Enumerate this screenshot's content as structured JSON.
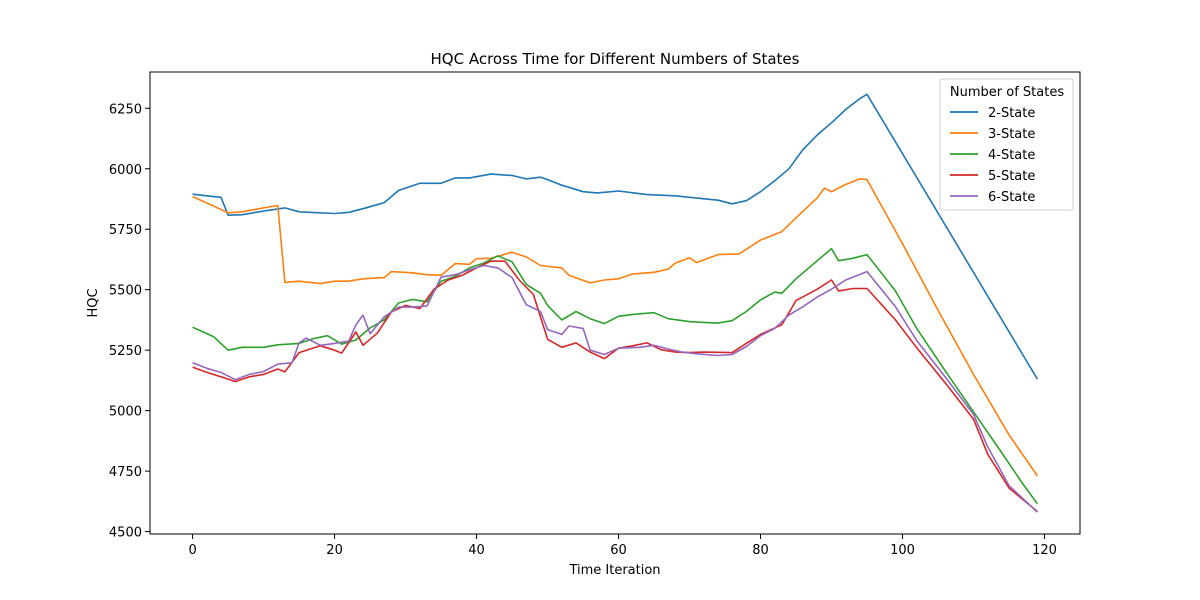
{
  "chart_data": {
    "type": "line",
    "title": "HQC Across Time for Different Numbers of States",
    "xlabel": "Time Iteration",
    "ylabel": "HQC",
    "xlim": [
      -6,
      125
    ],
    "ylim": [
      4490,
      6400
    ],
    "xticks": [
      0,
      20,
      40,
      60,
      80,
      100,
      120
    ],
    "yticks": [
      4500,
      4750,
      5000,
      5250,
      5500,
      5750,
      6000,
      6250
    ],
    "grid": false,
    "legend": {
      "title": "Number of States",
      "placement": "top-right"
    },
    "series": [
      {
        "name": "2-State",
        "color": "#1f77b4",
        "points": [
          [
            0,
            5895
          ],
          [
            2,
            5888
          ],
          [
            4,
            5882
          ],
          [
            5,
            5808
          ],
          [
            7,
            5810
          ],
          [
            10,
            5825
          ],
          [
            13,
            5838
          ],
          [
            15,
            5822
          ],
          [
            20,
            5815
          ],
          [
            22,
            5820
          ],
          [
            24,
            5835
          ],
          [
            27,
            5860
          ],
          [
            29,
            5910
          ],
          [
            32,
            5940
          ],
          [
            35,
            5940
          ],
          [
            37,
            5962
          ],
          [
            39,
            5962
          ],
          [
            42,
            5978
          ],
          [
            45,
            5972
          ],
          [
            47,
            5958
          ],
          [
            49,
            5965
          ],
          [
            50,
            5955
          ],
          [
            52,
            5932
          ],
          [
            55,
            5905
          ],
          [
            57,
            5900
          ],
          [
            60,
            5908
          ],
          [
            64,
            5893
          ],
          [
            68,
            5888
          ],
          [
            70,
            5882
          ],
          [
            74,
            5870
          ],
          [
            76,
            5855
          ],
          [
            78,
            5868
          ],
          [
            80,
            5905
          ],
          [
            82,
            5950
          ],
          [
            84,
            6000
          ],
          [
            86,
            6080
          ],
          [
            88,
            6140
          ],
          [
            90,
            6190
          ],
          [
            92,
            6245
          ],
          [
            94,
            6290
          ],
          [
            95,
            6308
          ],
          [
            119,
            5130
          ]
        ]
      },
      {
        "name": "3-State",
        "color": "#ff7f0e",
        "points": [
          [
            0,
            5885
          ],
          [
            3,
            5845
          ],
          [
            5,
            5818
          ],
          [
            7,
            5822
          ],
          [
            10,
            5838
          ],
          [
            12,
            5848
          ],
          [
            13,
            5530
          ],
          [
            15,
            5535
          ],
          [
            18,
            5525
          ],
          [
            20,
            5535
          ],
          [
            22,
            5535
          ],
          [
            24,
            5545
          ],
          [
            27,
            5550
          ],
          [
            28,
            5575
          ],
          [
            31,
            5570
          ],
          [
            33,
            5562
          ],
          [
            35,
            5560
          ],
          [
            37,
            5608
          ],
          [
            39,
            5605
          ],
          [
            40,
            5628
          ],
          [
            42,
            5630
          ],
          [
            45,
            5655
          ],
          [
            47,
            5635
          ],
          [
            49,
            5600
          ],
          [
            52,
            5590
          ],
          [
            53,
            5560
          ],
          [
            56,
            5528
          ],
          [
            58,
            5540
          ],
          [
            60,
            5545
          ],
          [
            62,
            5565
          ],
          [
            65,
            5572
          ],
          [
            67,
            5585
          ],
          [
            68,
            5610
          ],
          [
            70,
            5632
          ],
          [
            71,
            5612
          ],
          [
            74,
            5645
          ],
          [
            77,
            5648
          ],
          [
            80,
            5705
          ],
          [
            83,
            5740
          ],
          [
            86,
            5825
          ],
          [
            88,
            5880
          ],
          [
            89,
            5920
          ],
          [
            90,
            5905
          ],
          [
            92,
            5935
          ],
          [
            94,
            5958
          ],
          [
            95,
            5955
          ],
          [
            100,
            5690
          ],
          [
            105,
            5415
          ],
          [
            110,
            5150
          ],
          [
            115,
            4900
          ],
          [
            119,
            4730
          ]
        ]
      },
      {
        "name": "4-State",
        "color": "#2ca02c",
        "points": [
          [
            0,
            5345
          ],
          [
            3,
            5305
          ],
          [
            5,
            5250
          ],
          [
            7,
            5262
          ],
          [
            10,
            5262
          ],
          [
            12,
            5272
          ],
          [
            15,
            5278
          ],
          [
            17,
            5298
          ],
          [
            19,
            5310
          ],
          [
            21,
            5275
          ],
          [
            23,
            5292
          ],
          [
            25,
            5342
          ],
          [
            27,
            5375
          ],
          [
            29,
            5445
          ],
          [
            31,
            5460
          ],
          [
            33,
            5450
          ],
          [
            35,
            5535
          ],
          [
            37,
            5555
          ],
          [
            39,
            5590
          ],
          [
            41,
            5610
          ],
          [
            43,
            5640
          ],
          [
            45,
            5615
          ],
          [
            47,
            5522
          ],
          [
            49,
            5485
          ],
          [
            50,
            5435
          ],
          [
            52,
            5375
          ],
          [
            54,
            5410
          ],
          [
            56,
            5380
          ],
          [
            58,
            5360
          ],
          [
            60,
            5390
          ],
          [
            62,
            5398
          ],
          [
            65,
            5405
          ],
          [
            67,
            5380
          ],
          [
            70,
            5368
          ],
          [
            72,
            5365
          ],
          [
            74,
            5362
          ],
          [
            76,
            5372
          ],
          [
            78,
            5410
          ],
          [
            80,
            5458
          ],
          [
            82,
            5490
          ],
          [
            83,
            5485
          ],
          [
            85,
            5545
          ],
          [
            88,
            5620
          ],
          [
            90,
            5670
          ],
          [
            91,
            5620
          ],
          [
            93,
            5630
          ],
          [
            95,
            5645
          ],
          [
            99,
            5495
          ],
          [
            102,
            5340
          ],
          [
            106,
            5165
          ],
          [
            110,
            4995
          ],
          [
            114,
            4825
          ],
          [
            117,
            4695
          ],
          [
            119,
            4615
          ]
        ]
      },
      {
        "name": "5-State",
        "color": "#d62728",
        "points": [
          [
            0,
            5180
          ],
          [
            2,
            5158
          ],
          [
            4,
            5140
          ],
          [
            6,
            5120
          ],
          [
            8,
            5140
          ],
          [
            10,
            5150
          ],
          [
            12,
            5172
          ],
          [
            13,
            5160
          ],
          [
            15,
            5240
          ],
          [
            18,
            5268
          ],
          [
            20,
            5250
          ],
          [
            21,
            5238
          ],
          [
            23,
            5325
          ],
          [
            24,
            5270
          ],
          [
            26,
            5320
          ],
          [
            28,
            5408
          ],
          [
            30,
            5435
          ],
          [
            32,
            5422
          ],
          [
            34,
            5502
          ],
          [
            36,
            5540
          ],
          [
            38,
            5560
          ],
          [
            40,
            5590
          ],
          [
            42,
            5618
          ],
          [
            44,
            5618
          ],
          [
            46,
            5540
          ],
          [
            48,
            5480
          ],
          [
            50,
            5295
          ],
          [
            52,
            5262
          ],
          [
            54,
            5280
          ],
          [
            56,
            5242
          ],
          [
            58,
            5215
          ],
          [
            60,
            5258
          ],
          [
            62,
            5268
          ],
          [
            64,
            5280
          ],
          [
            66,
            5252
          ],
          [
            68,
            5242
          ],
          [
            70,
            5240
          ],
          [
            72,
            5242
          ],
          [
            76,
            5240
          ],
          [
            78,
            5278
          ],
          [
            80,
            5315
          ],
          [
            83,
            5355
          ],
          [
            85,
            5455
          ],
          [
            88,
            5502
          ],
          [
            90,
            5540
          ],
          [
            91,
            5495
          ],
          [
            93,
            5505
          ],
          [
            95,
            5505
          ],
          [
            99,
            5375
          ],
          [
            102,
            5260
          ],
          [
            106,
            5115
          ],
          [
            110,
            4965
          ],
          [
            112,
            4820
          ],
          [
            115,
            4680
          ],
          [
            119,
            4583
          ]
        ]
      },
      {
        "name": "6-State",
        "color": "#9467bd",
        "points": [
          [
            0,
            5198
          ],
          [
            2,
            5175
          ],
          [
            4,
            5158
          ],
          [
            6,
            5128
          ],
          [
            8,
            5150
          ],
          [
            10,
            5162
          ],
          [
            12,
            5192
          ],
          [
            14,
            5198
          ],
          [
            15,
            5280
          ],
          [
            16,
            5300
          ],
          [
            18,
            5270
          ],
          [
            20,
            5278
          ],
          [
            22,
            5288
          ],
          [
            23,
            5355
          ],
          [
            24,
            5395
          ],
          [
            25,
            5318
          ],
          [
            27,
            5388
          ],
          [
            29,
            5428
          ],
          [
            31,
            5428
          ],
          [
            33,
            5432
          ],
          [
            35,
            5552
          ],
          [
            37,
            5562
          ],
          [
            39,
            5582
          ],
          [
            41,
            5600
          ],
          [
            43,
            5590
          ],
          [
            45,
            5550
          ],
          [
            47,
            5438
          ],
          [
            49,
            5410
          ],
          [
            50,
            5335
          ],
          [
            52,
            5315
          ],
          [
            53,
            5350
          ],
          [
            55,
            5340
          ],
          [
            56,
            5250
          ],
          [
            58,
            5232
          ],
          [
            60,
            5258
          ],
          [
            63,
            5262
          ],
          [
            65,
            5270
          ],
          [
            67,
            5255
          ],
          [
            69,
            5242
          ],
          [
            71,
            5235
          ],
          [
            74,
            5228
          ],
          [
            76,
            5232
          ],
          [
            78,
            5265
          ],
          [
            80,
            5310
          ],
          [
            82,
            5340
          ],
          [
            84,
            5395
          ],
          [
            86,
            5430
          ],
          [
            88,
            5470
          ],
          [
            90,
            5502
          ],
          [
            92,
            5540
          ],
          [
            95,
            5575
          ],
          [
            99,
            5430
          ],
          [
            102,
            5290
          ],
          [
            106,
            5140
          ],
          [
            110,
            4985
          ],
          [
            112,
            4850
          ],
          [
            115,
            4690
          ],
          [
            119,
            4580
          ]
        ]
      }
    ]
  }
}
